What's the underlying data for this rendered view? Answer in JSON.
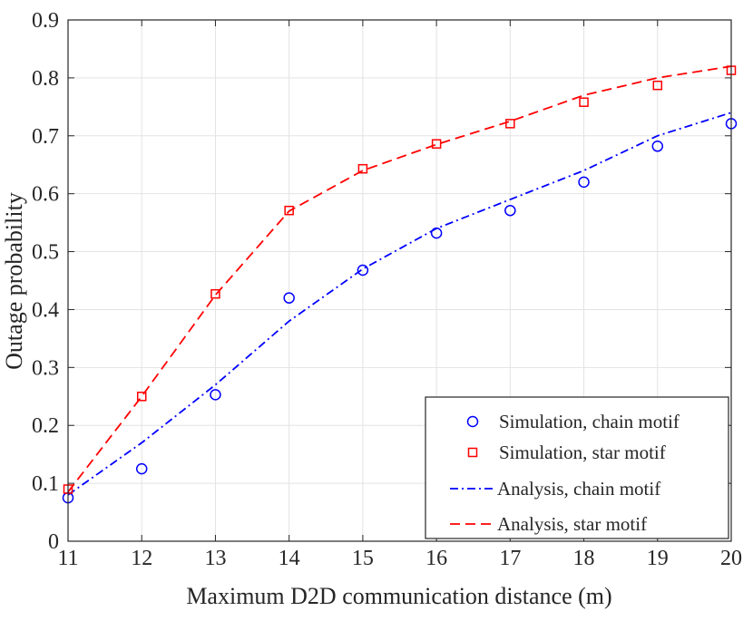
{
  "chart_data": {
    "type": "line",
    "title": "",
    "xlabel": "Maximum D2D communication distance (m)",
    "ylabel": "Outage probability",
    "x": [
      11,
      12,
      13,
      14,
      15,
      16,
      17,
      18,
      19,
      20
    ],
    "xlim": [
      11,
      20
    ],
    "ylim": [
      0,
      0.9
    ],
    "xticks": [
      "11",
      "12",
      "13",
      "14",
      "15",
      "16",
      "17",
      "18",
      "19",
      "20"
    ],
    "yticks": [
      "0",
      "0.1",
      "0.2",
      "0.3",
      "0.4",
      "0.5",
      "0.6",
      "0.7",
      "0.8",
      "0.9"
    ],
    "grid": true,
    "legend_position": "bottom-right",
    "series": [
      {
        "name": "Simulation, chain motif",
        "style": "markers",
        "marker": "circle",
        "color": "#0000ff",
        "values": [
          0.075,
          0.125,
          0.253,
          0.42,
          0.468,
          0.532,
          0.571,
          0.62,
          0.682,
          0.721
        ]
      },
      {
        "name": "Simulation, star motif",
        "style": "markers",
        "marker": "square",
        "color": "#ff0000",
        "values": [
          0.09,
          0.25,
          0.427,
          0.571,
          0.643,
          0.686,
          0.721,
          0.758,
          0.787,
          0.813
        ]
      },
      {
        "name": "Analysis, chain motif",
        "style": "dashdot",
        "color": "#0000ff",
        "values": [
          0.08,
          0.17,
          0.27,
          0.38,
          0.47,
          0.54,
          0.59,
          0.64,
          0.7,
          0.74
        ]
      },
      {
        "name": "Analysis, star motif",
        "style": "dashed",
        "color": "#ff0000",
        "values": [
          0.085,
          0.25,
          0.425,
          0.57,
          0.64,
          0.685,
          0.725,
          0.77,
          0.8,
          0.82
        ]
      }
    ]
  }
}
